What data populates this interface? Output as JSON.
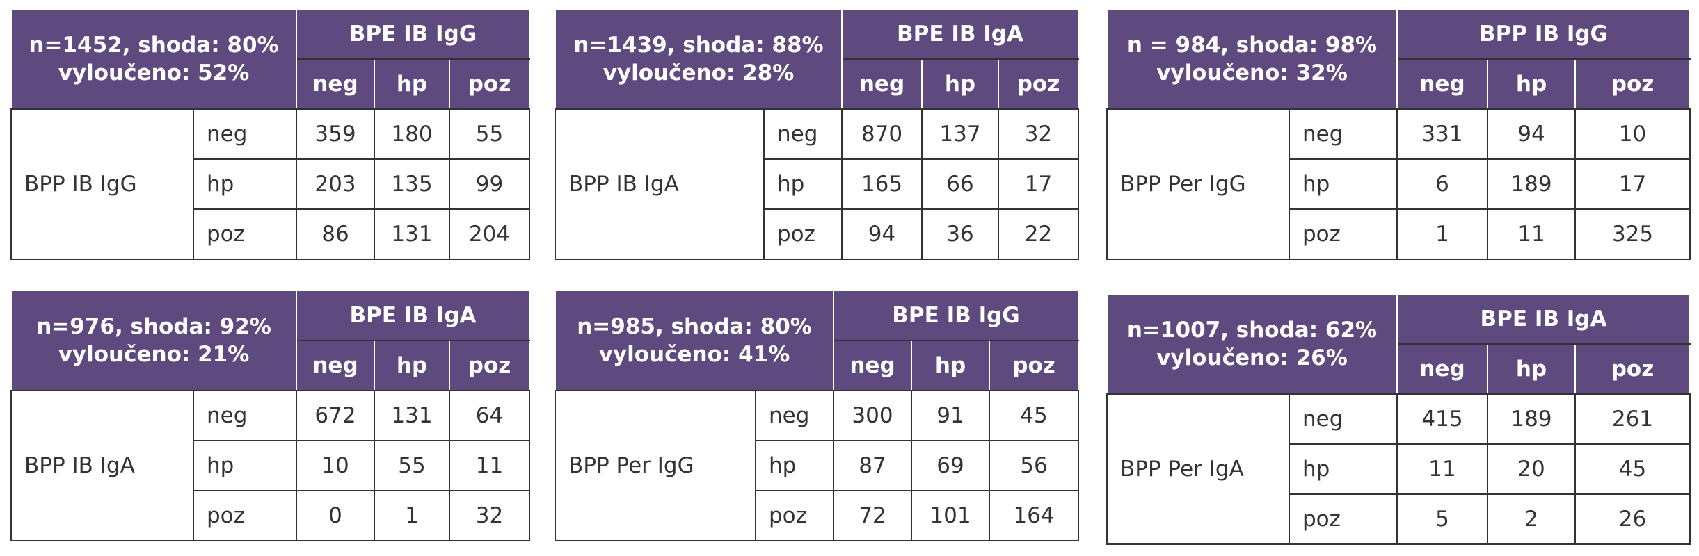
{
  "tables": [
    {
      "title": [
        "n=1452, shoda: 80%",
        "vyloučeno: 52%"
      ],
      "column_group": "BPE IB IgG",
      "columns": [
        "neg",
        "hp",
        "poz"
      ],
      "row_group": "BPP IB IgG",
      "rows": [
        {
          "label": "neg",
          "cells": [
            359,
            180,
            55
          ]
        },
        {
          "label": "hp",
          "cells": [
            203,
            135,
            99
          ]
        },
        {
          "label": "poz",
          "cells": [
            86,
            131,
            204
          ]
        }
      ]
    },
    {
      "title": [
        "n=1439, shoda: 88%",
        "vyloučeno: 28%"
      ],
      "column_group": "BPE IB IgA",
      "columns": [
        "neg",
        "hp",
        "poz"
      ],
      "row_group": "BPP IB IgA",
      "rows": [
        {
          "label": "neg",
          "cells": [
            870,
            137,
            32
          ]
        },
        {
          "label": "hp",
          "cells": [
            165,
            66,
            17
          ]
        },
        {
          "label": "poz",
          "cells": [
            94,
            36,
            22
          ]
        }
      ]
    },
    {
      "title": [
        "n = 984, shoda: 98%",
        "vyloučeno: 32%"
      ],
      "column_group": "BPP IB IgG",
      "columns": [
        "neg",
        "hp",
        "poz"
      ],
      "row_group": "BPP Per IgG",
      "rows": [
        {
          "label": "neg",
          "cells": [
            331,
            94,
            10
          ]
        },
        {
          "label": "hp",
          "cells": [
            6,
            189,
            17
          ]
        },
        {
          "label": "poz",
          "cells": [
            1,
            11,
            325
          ]
        }
      ]
    },
    {
      "title": [
        "n=976, shoda: 92%",
        "vyloučeno: 21%"
      ],
      "column_group": "BPE IB IgA",
      "columns": [
        "neg",
        "hp",
        "poz"
      ],
      "row_group": "BPP IB IgA",
      "rows": [
        {
          "label": "neg",
          "cells": [
            672,
            131,
            64
          ]
        },
        {
          "label": "hp",
          "cells": [
            10,
            55,
            11
          ]
        },
        {
          "label": "poz",
          "cells": [
            0,
            1,
            32
          ]
        }
      ]
    },
    {
      "title": [
        "n=985, shoda: 80%",
        "vyloučeno: 41%"
      ],
      "column_group": "BPE IB IgG",
      "columns": [
        "neg",
        "hp",
        "poz"
      ],
      "row_group": "BPP Per IgG",
      "rows": [
        {
          "label": "neg",
          "cells": [
            300,
            91,
            45
          ]
        },
        {
          "label": "hp",
          "cells": [
            87,
            69,
            56
          ]
        },
        {
          "label": "poz",
          "cells": [
            72,
            101,
            164
          ]
        }
      ]
    },
    {
      "title": [
        "n=1007, shoda: 62%",
        "vyloučeno: 26%"
      ],
      "column_group": "BPE IB IgA",
      "columns": [
        "neg",
        "hp",
        "poz"
      ],
      "row_group": "BPP Per IgA",
      "rows": [
        {
          "label": "neg",
          "cells": [
            415,
            189,
            261
          ]
        },
        {
          "label": "hp",
          "cells": [
            11,
            20,
            45
          ]
        },
        {
          "label": "poz",
          "cells": [
            5,
            2,
            26
          ]
        }
      ]
    }
  ]
}
